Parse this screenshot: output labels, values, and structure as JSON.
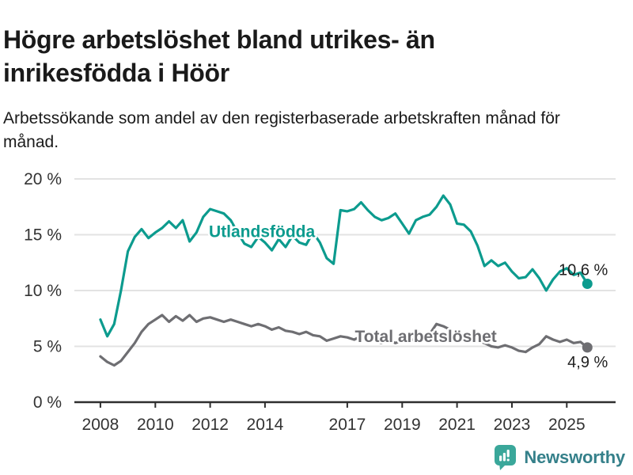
{
  "header": {
    "title": "Högre arbetslöshet bland utrikes- än inrikesfödda i Höör",
    "subtitle": "Arbetssökande som andel av den registerbaserade arbetskraften månad för månad."
  },
  "footer": {
    "brand": "Newsworthy",
    "brand_text_color": "#35808a",
    "brand_icon_color": "#3aa79a"
  },
  "chart_data": {
    "type": "line",
    "title": "",
    "xlabel": "",
    "ylabel": "",
    "x_unit": "year",
    "y_unit": "%",
    "xlim": [
      2007.05,
      2026.78
    ],
    "ylim": [
      0,
      20
    ],
    "x_start": 2008.0,
    "x_step": 0.25,
    "grid": true,
    "grid_color": "#e3e3e3",
    "axis_color": "#2e2e2e",
    "tick_text_color": "#333333",
    "value_label_color": "#1f1f1f",
    "x_ticks": [
      2008,
      2010,
      2012,
      2014,
      2017,
      2019,
      2021,
      2023,
      2025
    ],
    "y_ticks": [
      {
        "value": 0,
        "label": "0 %"
      },
      {
        "value": 5,
        "label": "5 %"
      },
      {
        "value": 10,
        "label": "10 %"
      },
      {
        "value": 15,
        "label": "15 %"
      },
      {
        "value": 20,
        "label": "20 %"
      }
    ],
    "series": [
      {
        "name": "Utlandsfödda",
        "color": "#0c9b8e",
        "end_label": "10,6 %",
        "end_label_side": "above",
        "label_at": [
          2013.89,
          15.3
        ],
        "values": [
          7.4,
          5.9,
          7.0,
          10.0,
          13.5,
          14.8,
          15.5,
          14.7,
          15.2,
          15.6,
          16.2,
          15.6,
          16.3,
          14.4,
          15.2,
          16.6,
          17.3,
          17.1,
          16.9,
          16.3,
          15.2,
          14.2,
          13.9,
          14.8,
          14.3,
          13.6,
          14.6,
          13.9,
          14.9,
          14.3,
          14.1,
          15.2,
          14.3,
          12.9,
          12.4,
          17.2,
          17.1,
          17.3,
          17.9,
          17.2,
          16.6,
          16.3,
          16.5,
          16.9,
          16.0,
          15.1,
          16.3,
          16.6,
          16.8,
          17.5,
          18.5,
          17.7,
          16.0,
          15.9,
          15.3,
          14.0,
          12.2,
          12.7,
          12.2,
          12.5,
          11.7,
          11.1,
          11.2,
          11.9,
          11.1,
          10.0,
          11.0,
          11.7,
          12.0,
          11.4,
          11.6,
          10.6
        ]
      },
      {
        "name": "Total arbetslöshet",
        "color": "#6e6e72",
        "end_label": "4,9 %",
        "end_label_side": "below",
        "label_at": [
          2019.86,
          5.9
        ],
        "values": [
          4.1,
          3.6,
          3.3,
          3.7,
          4.5,
          5.3,
          6.3,
          7.0,
          7.4,
          7.8,
          7.2,
          7.7,
          7.3,
          7.8,
          7.2,
          7.5,
          7.6,
          7.4,
          7.2,
          7.4,
          7.2,
          7.0,
          6.8,
          7.0,
          6.8,
          6.5,
          6.7,
          6.4,
          6.3,
          6.1,
          6.3,
          6.0,
          5.9,
          5.5,
          5.7,
          5.9,
          5.8,
          5.6,
          5.9,
          5.6,
          5.5,
          5.3,
          5.6,
          5.3,
          5.5,
          5.7,
          5.5,
          5.8,
          6.1,
          7.0,
          6.8,
          6.5,
          6.2,
          6.0,
          5.8,
          5.5,
          5.3,
          5.0,
          4.9,
          5.1,
          4.9,
          4.6,
          4.5,
          4.9,
          5.2,
          5.9,
          5.6,
          5.4,
          5.6,
          5.3,
          5.4,
          4.9
        ]
      }
    ]
  }
}
